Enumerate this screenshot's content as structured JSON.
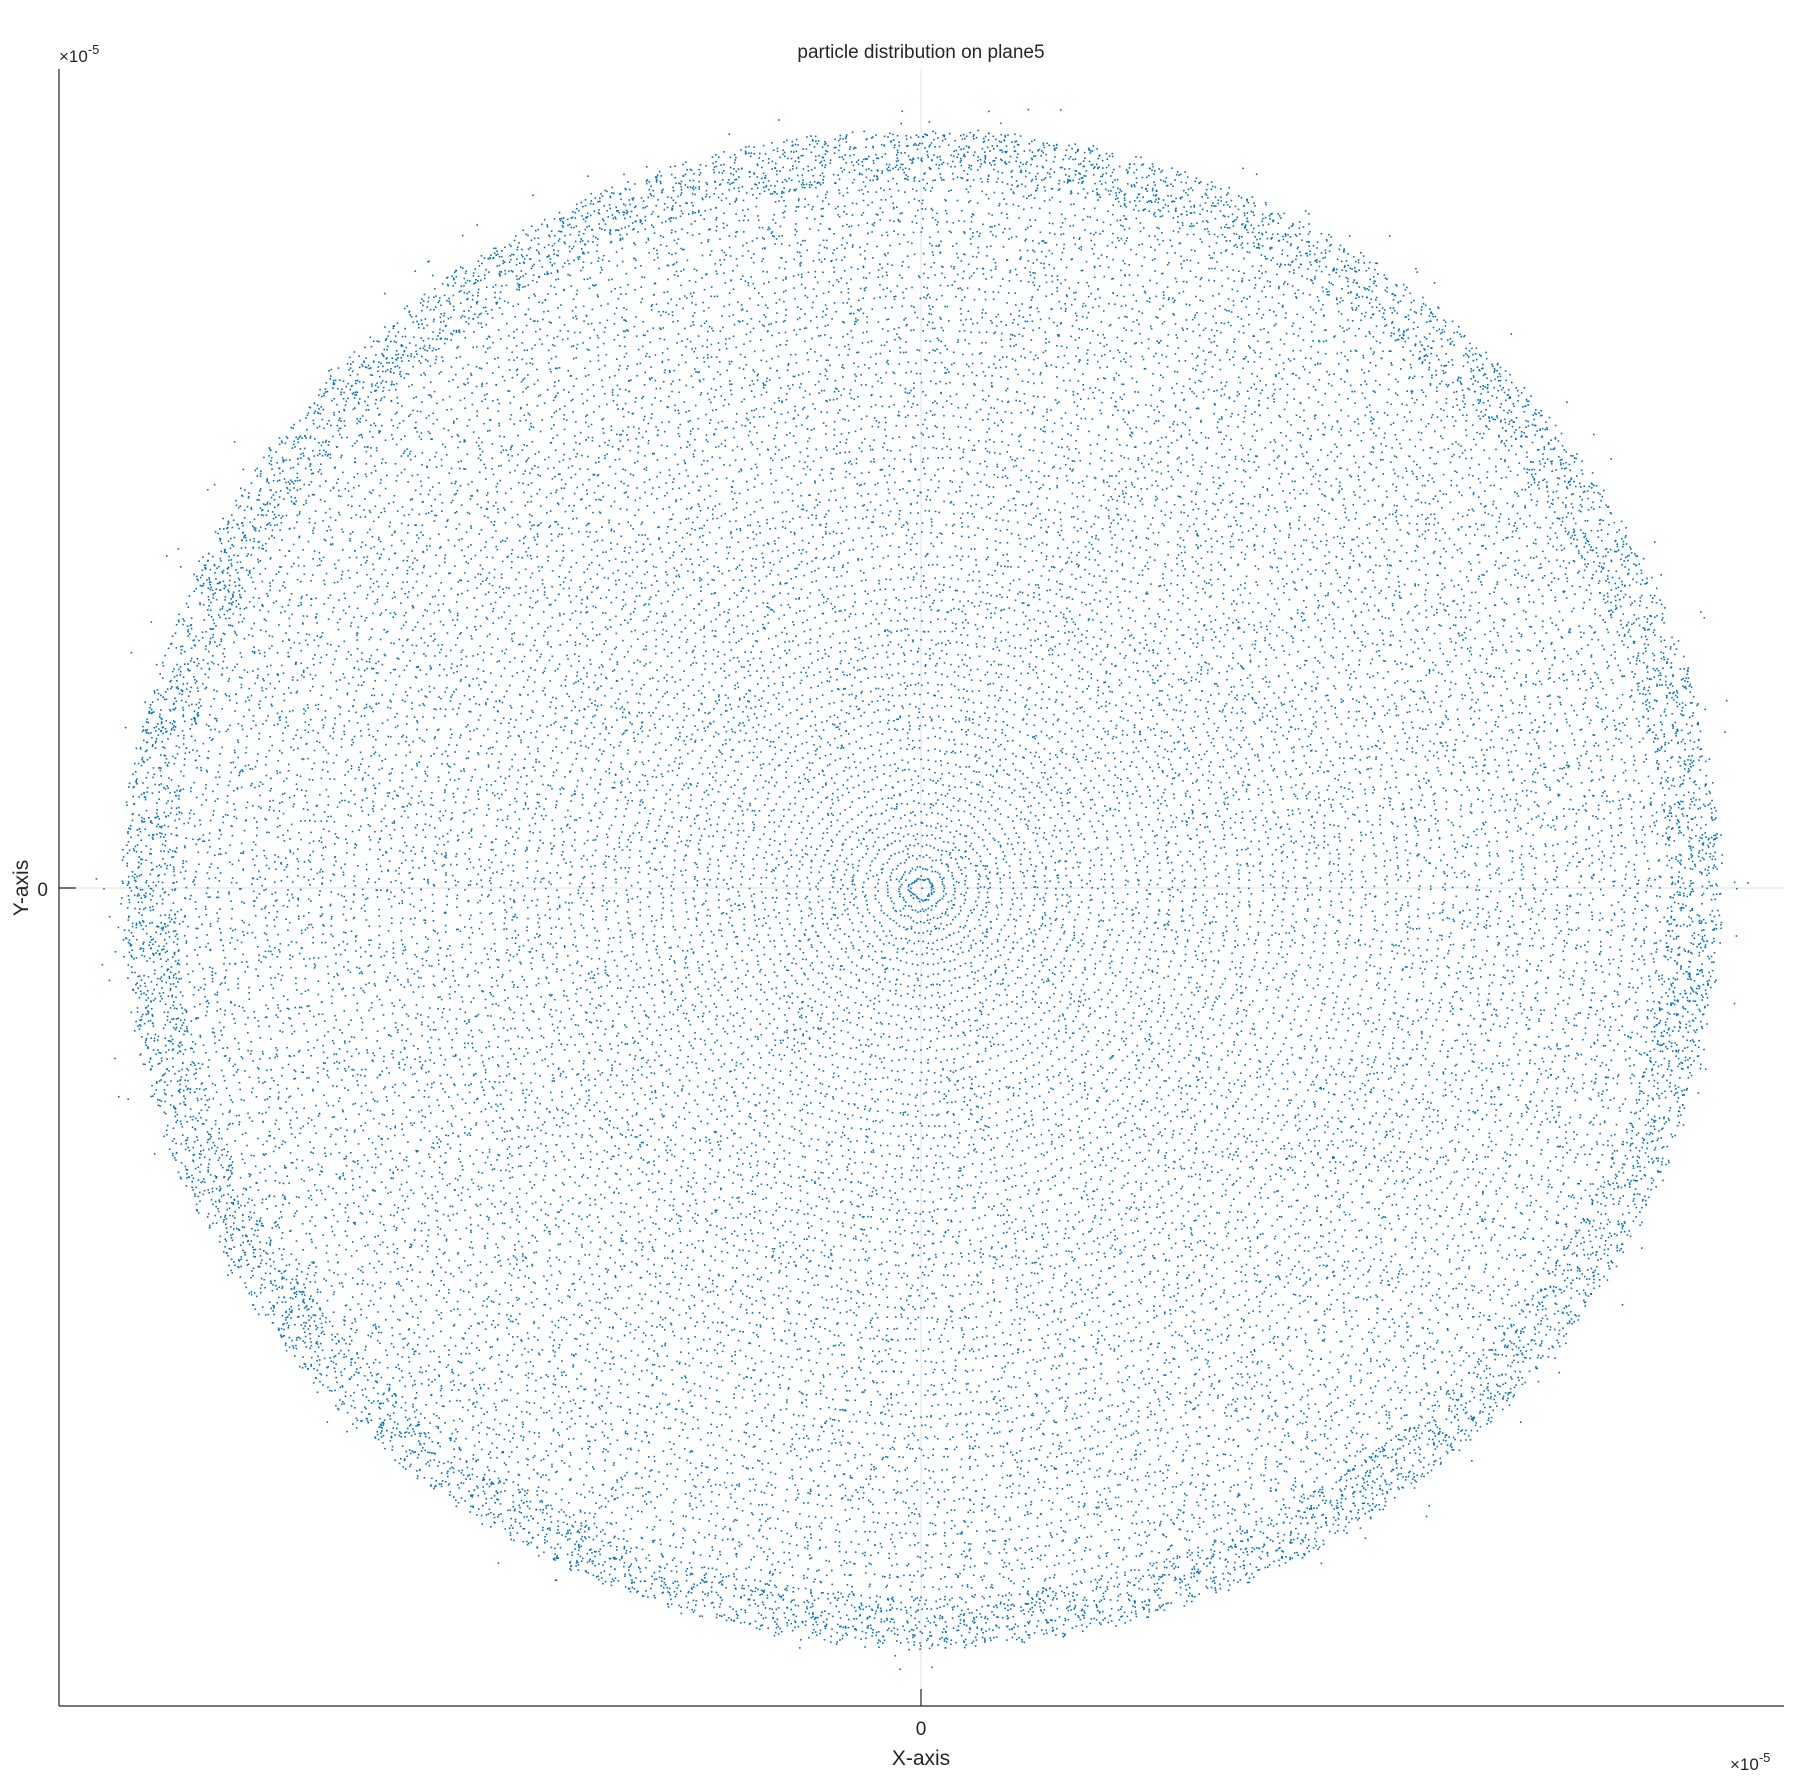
{
  "chart_data": {
    "type": "scatter",
    "title": "particle distribution on plane5",
    "xlabel": "X-axis",
    "ylabel": "Y-axis",
    "x_tick_labels": [
      "0"
    ],
    "y_tick_labels": [
      "0"
    ],
    "x_exponent_label": "×10",
    "x_exponent_power": "-5",
    "y_exponent_label": "×10",
    "y_exponent_power": "-5",
    "xlim": [
      -1.0,
      1.0
    ],
    "ylim": [
      -1.0,
      1.0
    ],
    "grid": "zero-lines",
    "marker_color": "#0072BD",
    "distribution": {
      "shape": "disk",
      "center": [
        0,
        0
      ],
      "radius": 0.92,
      "dense_rim": true,
      "points": [
        {
          "x": 0.0,
          "y": 0.0
        },
        {
          "x": 0.15,
          "y": 0.12
        },
        {
          "x": -0.2,
          "y": 0.18
        },
        {
          "x": 0.3,
          "y": -0.25
        },
        {
          "x": -0.35,
          "y": -0.3
        },
        {
          "x": 0.5,
          "y": 0.4
        },
        {
          "x": -0.55,
          "y": 0.45
        },
        {
          "x": 0.6,
          "y": -0.5
        },
        {
          "x": -0.6,
          "y": -0.55
        },
        {
          "x": 0.91,
          "y": 0.0
        },
        {
          "x": -0.91,
          "y": 0.0
        },
        {
          "x": 0.0,
          "y": 0.91
        },
        {
          "x": 0.0,
          "y": -0.91
        },
        {
          "x": 0.65,
          "y": 0.64
        },
        {
          "x": -0.65,
          "y": 0.64
        },
        {
          "x": 0.65,
          "y": -0.64
        },
        {
          "x": -0.65,
          "y": -0.64
        }
      ]
    }
  }
}
